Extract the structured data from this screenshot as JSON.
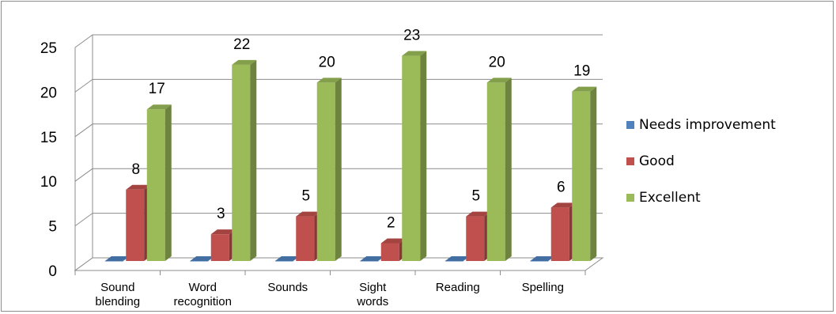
{
  "chart_data": {
    "type": "bar",
    "categories": [
      [
        "Sound",
        "blending"
      ],
      [
        "Word",
        "recognition"
      ],
      [
        "Sounds"
      ],
      [
        "Sight",
        "words"
      ],
      [
        "Reading"
      ],
      [
        "Spelling"
      ]
    ],
    "series": [
      {
        "name": "Needs improvement",
        "color": "#4f81bd",
        "values": [
          0,
          0,
          0,
          0,
          0,
          0
        ]
      },
      {
        "name": "Good",
        "color": "#c0504d",
        "values": [
          8,
          3,
          5,
          2,
          5,
          6
        ]
      },
      {
        "name": "Excellent",
        "color": "#9bbb59",
        "values": [
          17,
          22,
          20,
          23,
          20,
          19
        ]
      }
    ],
    "data_labels_series": [
      "Good",
      "Excellent"
    ],
    "ylim": [
      0,
      25
    ],
    "yticks": [
      0,
      5,
      10,
      15,
      20,
      25
    ],
    "grid": true,
    "legend_position": "right",
    "style": "3d-clustered-column"
  }
}
